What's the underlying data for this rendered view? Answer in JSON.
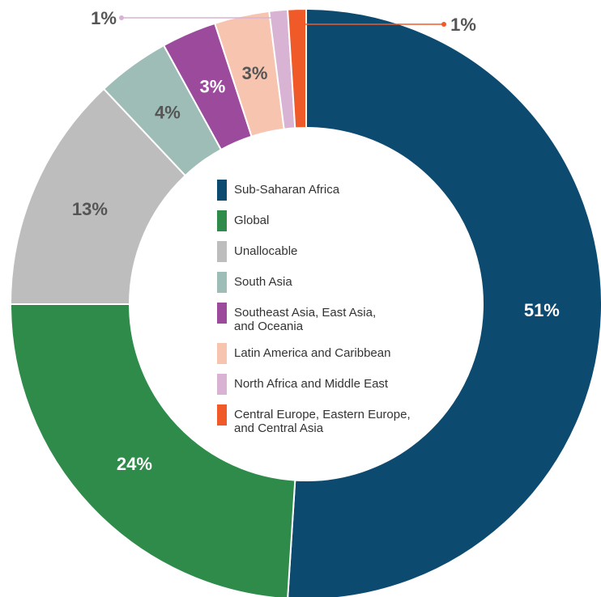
{
  "chart_data": {
    "type": "pie",
    "categories": [
      "Sub-Saharan Africa",
      "Global",
      "Unallocable",
      "South Asia",
      "Southeast Asia, East Asia,\nand Oceania",
      "Latin America and Caribbean",
      "North Africa and Middle East",
      "Central Europe, Eastern Europe,\nand Central Asia"
    ],
    "values": [
      51,
      24,
      13,
      4,
      3,
      3,
      1,
      1
    ],
    "value_labels": [
      "51%",
      "24%",
      "13%",
      "4%",
      "3%",
      "3%",
      "1%",
      "1%"
    ],
    "colors": [
      "#0d4a70",
      "#2e8b4a",
      "#bdbdbd",
      "#9ebdb7",
      "#9c4a9c",
      "#f7c4b0",
      "#d9b3d4",
      "#f05a28"
    ],
    "legend": "center"
  }
}
